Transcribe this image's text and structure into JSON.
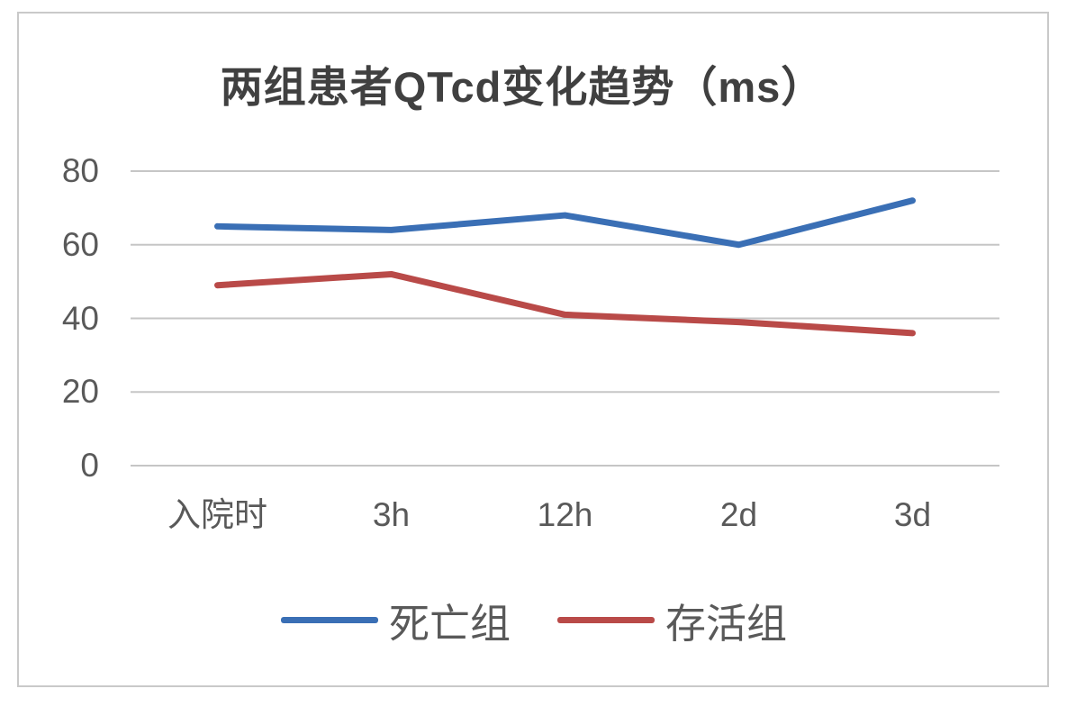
{
  "chart_data": {
    "type": "line",
    "title": "两组患者QTcd变化趋势（ms）",
    "categories": [
      "入院时",
      "3h",
      "12h",
      "2d",
      "3d"
    ],
    "series": [
      {
        "name": "死亡组",
        "color": "#3A6FB5",
        "values": [
          65,
          64,
          68,
          60,
          72
        ]
      },
      {
        "name": "存活组",
        "color": "#B94A48",
        "values": [
          49,
          52,
          41,
          39,
          36
        ]
      }
    ],
    "xlabel": "",
    "ylabel": "",
    "ylim": [
      0,
      80
    ],
    "yticks": [
      0,
      20,
      40,
      60,
      80
    ],
    "grid": true,
    "legend_position": "bottom"
  },
  "colors": {
    "title_text": "#404040",
    "axis_text": "#595959",
    "gridline": "#c6c6c6",
    "frame_border": "#c9c9c9",
    "background": "#ffffff"
  }
}
